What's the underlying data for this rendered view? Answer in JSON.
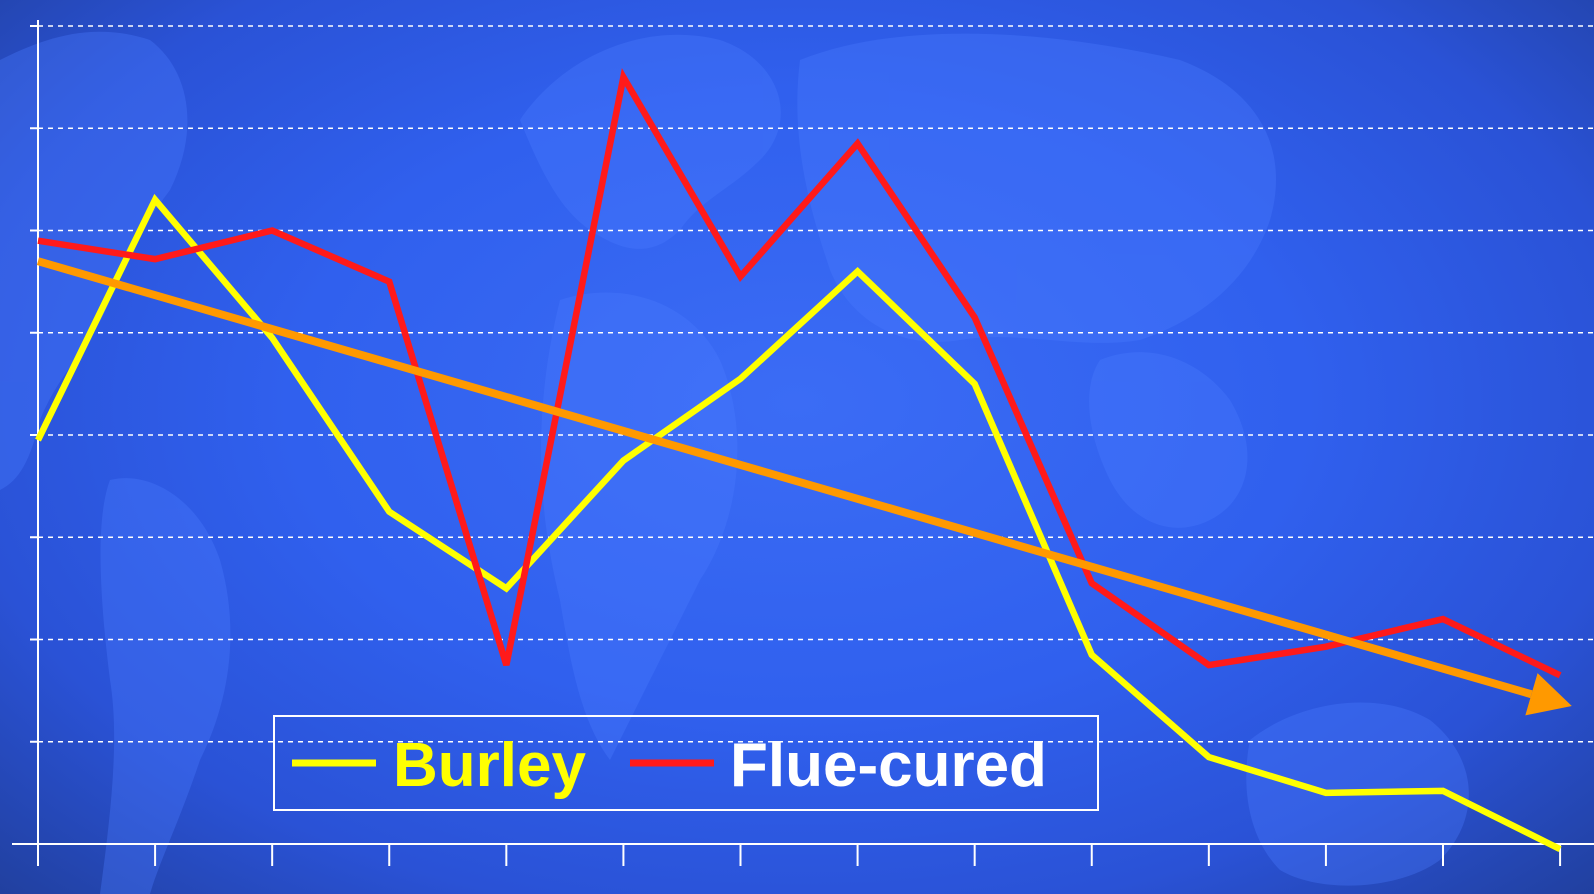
{
  "chart_data": {
    "type": "line",
    "title": "",
    "xlabel": "",
    "ylabel": "",
    "x": [
      1,
      2,
      3,
      4,
      5,
      6,
      7,
      8,
      9,
      10,
      11,
      12,
      13,
      14
    ],
    "ylim": [
      0,
      8
    ],
    "grid": true,
    "legend_position": "bottom-center",
    "series": [
      {
        "name": "Burley",
        "color": "#ffff00",
        "values": [
          3.95,
          6.3,
          4.95,
          3.25,
          2.5,
          3.75,
          4.55,
          5.6,
          4.5,
          1.85,
          0.85,
          0.5,
          0.52,
          -0.05
        ]
      },
      {
        "name": "Flue-cured",
        "color": "#ff1a1a",
        "values": [
          5.9,
          5.72,
          6.0,
          5.5,
          1.75,
          7.5,
          5.55,
          6.85,
          5.15,
          2.55,
          1.75,
          1.93,
          2.2,
          1.65
        ]
      }
    ],
    "trend": {
      "color": "#ff9900",
      "start": [
        1,
        5.7
      ],
      "end": [
        14.1,
        1.35
      ]
    }
  },
  "colors": {
    "background": "#3060ee",
    "grid": "#ffffff",
    "axis": "#ffffff",
    "legend_text_flue": "#ffffff"
  }
}
